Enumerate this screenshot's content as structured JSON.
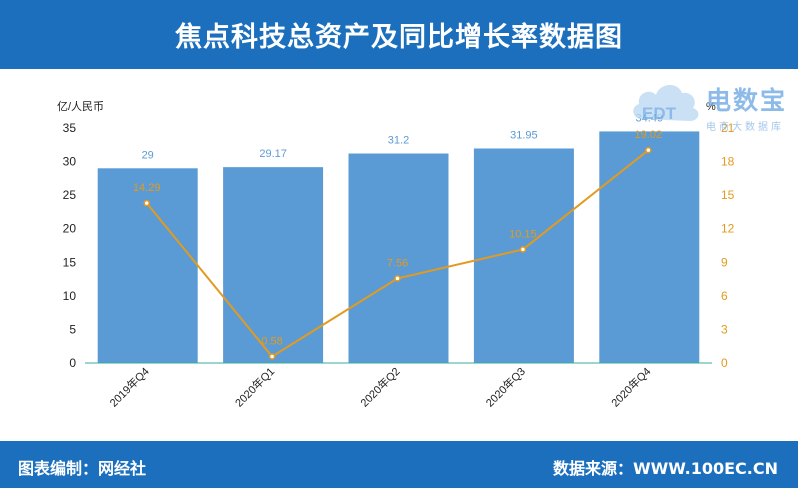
{
  "header": {
    "title": "焦点科技总资产及同比增长率数据图"
  },
  "footer": {
    "left": "图表编制：网经社",
    "right": "数据来源：WWW.100EC.CN"
  },
  "logo": {
    "text": "电数宝",
    "sub": "电商大数据库",
    "icon_text": "EDT"
  },
  "colors": {
    "bar": "#5b9bd5",
    "line": "#e29a20",
    "header": "#1c6fbd",
    "axis_text": "#222222",
    "right_axis_text": "#e29a20"
  },
  "chart_data": {
    "type": "bar",
    "categories": [
      "2019年Q4",
      "2020年Q1",
      "2020年Q2",
      "2020年Q3",
      "2020年Q4"
    ],
    "series": [
      {
        "values": [
          29,
          29.17,
          31.2,
          31.95,
          34.49
        ],
        "type": "bar",
        "axis": "left"
      },
      {
        "values": [
          14.29,
          0.58,
          7.56,
          10.15,
          19.02
        ],
        "type": "line",
        "axis": "right"
      }
    ],
    "ylabel": "亿/人民币",
    "ylim": [
      0,
      35
    ],
    "yticks": [
      0,
      5,
      10,
      15,
      20,
      25,
      30,
      35
    ],
    "y2label": "%",
    "y2lim": [
      0,
      21
    ],
    "y2ticks": [
      0,
      3,
      6,
      9,
      12,
      15,
      18,
      21
    ],
    "grid": false
  }
}
